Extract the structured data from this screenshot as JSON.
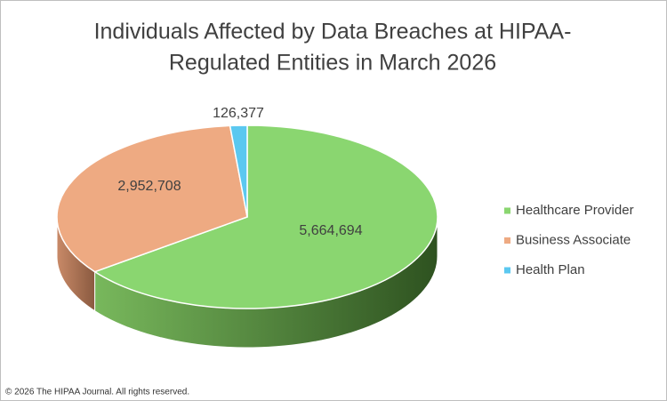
{
  "chart_data": {
    "type": "pie3d",
    "title": [
      "Individuals Affected by Data Breaches at HIPAA-",
      "Regulated Entities in March 2026"
    ],
    "categories": [
      "Healthcare Provider",
      "Business Associate",
      "Health Plan"
    ],
    "values": [
      5664694,
      2952708,
      126377
    ],
    "value_labels": [
      "5,664,694",
      "2,952,708",
      "126,377"
    ],
    "colors": [
      "#8ad670",
      "#eeaa82",
      "#5bc8f0"
    ],
    "legend": "right",
    "credit": "© 2026 The HIPAA Journal. All rights reserved."
  }
}
